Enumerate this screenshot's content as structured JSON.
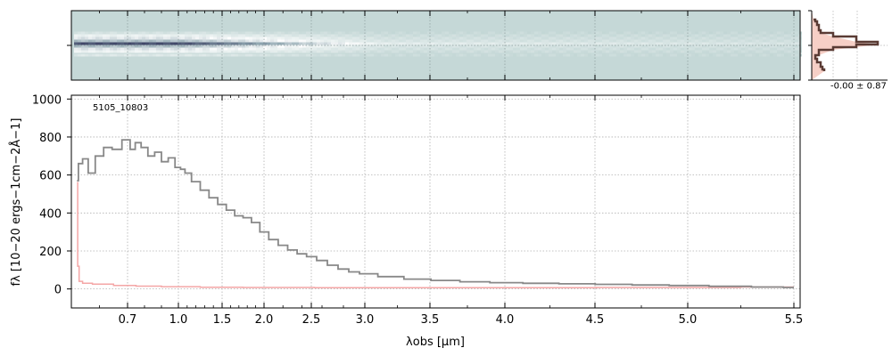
{
  "chart_data": [
    {
      "type": "heatmap",
      "panel": "2d-spectrum",
      "colormap": [
        "#ffffff",
        "#c5d8d7",
        "#8fa6b0",
        "#3e4466"
      ],
      "background_color": "#c5d8d7",
      "grid": true
    },
    {
      "type": "line",
      "panel": "cross-dispersion-profile",
      "annotation": "-0.00 ± 0.87",
      "colors": {
        "profile": "#5a3b34",
        "fill": "#f6cfc6"
      }
    },
    {
      "type": "line",
      "panel": "1d-spectrum",
      "title": "5105_10803",
      "xlabel": "λobs [μm]",
      "ylabel": "fλ [10−20 ergs−1cm−2Å−1]",
      "x_scale": "nonlinear (labelled at 0.7, 1.0, 1.5, 2.0, 2.5, 3.0, 3.5, 4.0, 4.5, 5.0, 5.5 μm)",
      "x_ticks": [
        "0.7",
        "1.0",
        "1.5",
        "2.0",
        "2.5",
        "3.0",
        "3.5",
        "4.0",
        "4.5",
        "5.0",
        "5.5"
      ],
      "y_ticks": [
        "0",
        "200",
        "400",
        "600",
        "800",
        "1000"
      ],
      "ylim": [
        -100,
        1020
      ],
      "grid": true,
      "series": [
        {
          "role": "flux",
          "color": "#888888",
          "x": [
            0.52,
            0.53,
            0.55,
            0.57,
            0.6,
            0.63,
            0.66,
            0.7,
            0.73,
            0.76,
            0.8,
            0.84,
            0.88,
            0.92,
            0.96,
            1.0,
            1.05,
            1.1,
            1.2,
            1.3,
            1.4,
            1.5,
            1.6,
            1.7,
            1.8,
            1.9,
            2.0,
            2.1,
            2.2,
            2.3,
            2.4,
            2.5,
            2.6,
            2.7,
            2.8,
            2.9,
            3.0,
            3.2,
            3.4,
            3.6,
            3.8,
            4.0,
            4.2,
            4.4,
            4.6,
            4.8,
            5.0,
            5.2,
            5.4,
            5.5
          ],
          "values": [
            570,
            660,
            685,
            610,
            700,
            745,
            735,
            785,
            735,
            770,
            745,
            700,
            720,
            670,
            690,
            640,
            630,
            610,
            565,
            520,
            480,
            445,
            415,
            385,
            375,
            350,
            300,
            260,
            230,
            205,
            185,
            170,
            150,
            125,
            105,
            90,
            80,
            65,
            52,
            45,
            38,
            33,
            30,
            27,
            24,
            21,
            18,
            14,
            10,
            8
          ]
        },
        {
          "role": "uncertainty",
          "color": "#f4a6a6",
          "x": [
            0.52,
            0.525,
            0.53,
            0.55,
            0.6,
            0.7,
            0.8,
            1.0,
            1.5,
            2.0,
            3.0,
            4.0,
            5.0,
            5.5
          ],
          "values": [
            560,
            120,
            40,
            30,
            25,
            18,
            15,
            12,
            9,
            8,
            7,
            7,
            8,
            10
          ]
        }
      ]
    }
  ]
}
